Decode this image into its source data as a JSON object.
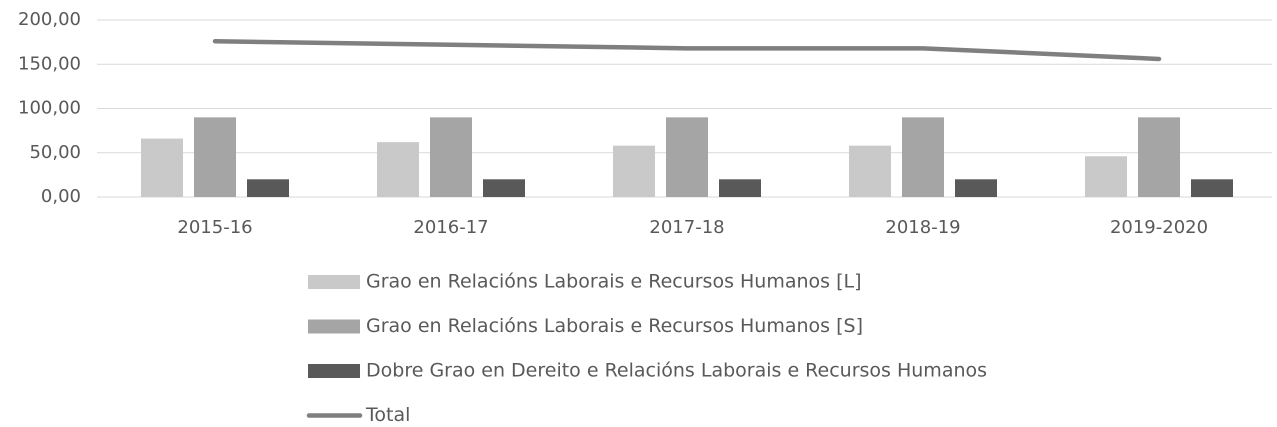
{
  "chart_data": {
    "type": "bar",
    "categories": [
      "2015-16",
      "2016-17",
      "2017-18",
      "2018-19",
      "2019-2020"
    ],
    "series": [
      {
        "name": "Grao en Relacións Laborais e Recursos Humanos [L]",
        "color": "#c9c9c9",
        "values": [
          66,
          62,
          58,
          58,
          46
        ]
      },
      {
        "name": "Grao en Relacións Laborais e Recursos Humanos [S]",
        "color": "#a5a5a5",
        "values": [
          90,
          90,
          90,
          90,
          90
        ]
      },
      {
        "name": "Dobre Grao en Dereito e Relacións Laborais e Recursos Humanos",
        "color": "#595959",
        "values": [
          20,
          20,
          20,
          20,
          20
        ]
      },
      {
        "name": "Total",
        "color": "#7f7f7f",
        "type": "line",
        "values": [
          176,
          172,
          168,
          168,
          156
        ]
      }
    ],
    "ylim": [
      0,
      200
    ],
    "yticks": [
      {
        "value": 0,
        "label": "0,00"
      },
      {
        "value": 50,
        "label": "50,00"
      },
      {
        "value": 100,
        "label": "100,00"
      },
      {
        "value": 150,
        "label": "150,00"
      },
      {
        "value": 200,
        "label": "200,00"
      }
    ],
    "grid": true,
    "legend": "bottom"
  }
}
